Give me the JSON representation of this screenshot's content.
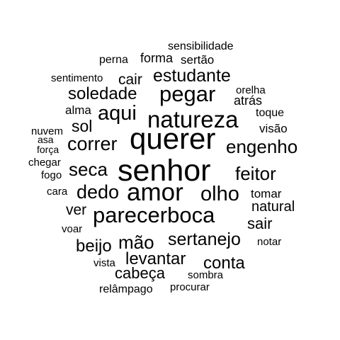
{
  "words": {
    "sensibilidade": "sensibilidade",
    "perna": "perna",
    "forma": "forma",
    "sertao": "sertão",
    "sentimento": "sentimento",
    "cair": "cair",
    "estudante": "estudante",
    "orelha": "orelha",
    "soledade": "soledade",
    "pegar": "pegar",
    "atras": "atrás",
    "alma": "alma",
    "aqui": "aqui",
    "natureza": "natureza",
    "toque": "toque",
    "sol": "sol",
    "nuvem": "nuvem",
    "visao": "visão",
    "querer": "querer",
    "asa": "asa",
    "correr": "correr",
    "engenho": "engenho",
    "forca": "força",
    "chegar": "chegar",
    "seca": "seca",
    "senhor": "senhor",
    "feitor": "feitor",
    "fogo": "fogo",
    "cara": "cara",
    "dedo": "dedo",
    "amor": "amor",
    "olho": "olho",
    "tomar": "tomar",
    "natural": "natural",
    "ver": "ver",
    "parecerboca": "parecerboca",
    "sair": "sair",
    "voar": "voar",
    "sertanejo": "sertanejo",
    "mao": "mão",
    "beijo": "beijo",
    "notar": "notar",
    "levantar": "levantar",
    "conta": "conta",
    "vista": "vista",
    "cabeca": "cabeça",
    "sombra": "sombra",
    "procurar": "procurar",
    "relampago": "relâmpago"
  },
  "colors": {
    "text": "#000000",
    "background": "#ffffff"
  }
}
